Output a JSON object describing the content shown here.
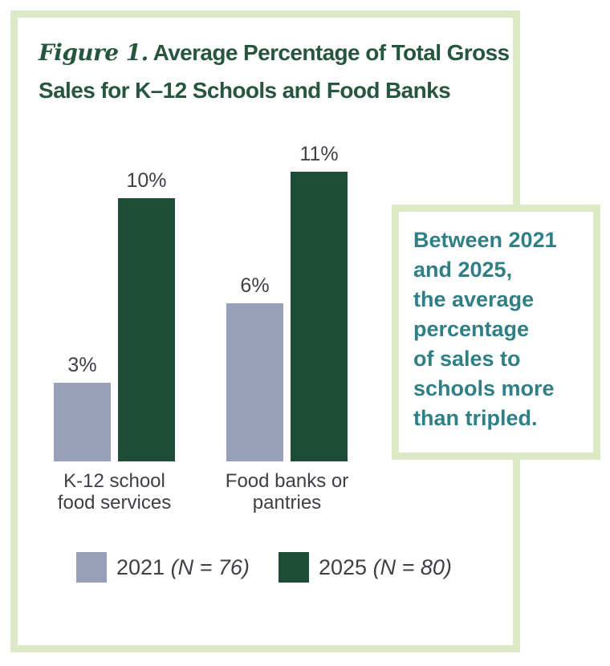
{
  "title": {
    "prefix": "Figure 1.",
    "line1": "Average Percentage of Total Gross",
    "line2": "Sales for K–12 Schools and Food Banks"
  },
  "callout": {
    "text": "Between 2021\nand 2025,\nthe average\npercentage\nof sales to\nschools more\nthan tripled."
  },
  "legend": {
    "position": "bottom",
    "items": [
      {
        "year": "2021",
        "n": "(N = 76)",
        "color": "#99a0ba"
      },
      {
        "year": "2025",
        "n": "(N = 80)",
        "color": "#1e4d37"
      }
    ]
  },
  "colors": {
    "border_light_green": "#dde8c5",
    "title_green": "#27563e",
    "bar_green_2025": "#1e4d37",
    "bar_lavender_2021": "#99a0ba",
    "callout_teal": "#2f7f87",
    "label_gray": "#3d4045",
    "background": "#ffffff"
  },
  "chart_data": {
    "type": "bar",
    "title": "Figure 1. Average Percentage of Total Gross Sales for K–12 Schools and Food Banks",
    "categories": [
      "K-12 school\nfood services",
      "Food banks or\npantries"
    ],
    "category_keys": [
      "k12-schools",
      "food-banks"
    ],
    "series": [
      {
        "name": "2021 (N = 76)",
        "key": "2021",
        "color": "#99a0ba",
        "values": [
          3,
          6
        ],
        "labels": [
          "3%",
          "6%"
        ]
      },
      {
        "name": "2025 (N = 80)",
        "key": "2025",
        "color": "#1e4d37",
        "values": [
          10,
          11
        ],
        "labels": [
          "10%",
          "11%"
        ]
      }
    ],
    "unit": "%",
    "xlabel": "",
    "ylabel": "",
    "axes_shown": false,
    "grid": false,
    "legend_position": "bottom",
    "annotation": "Between 2021 and 2025, the average percentage of sales to schools more than tripled."
  }
}
